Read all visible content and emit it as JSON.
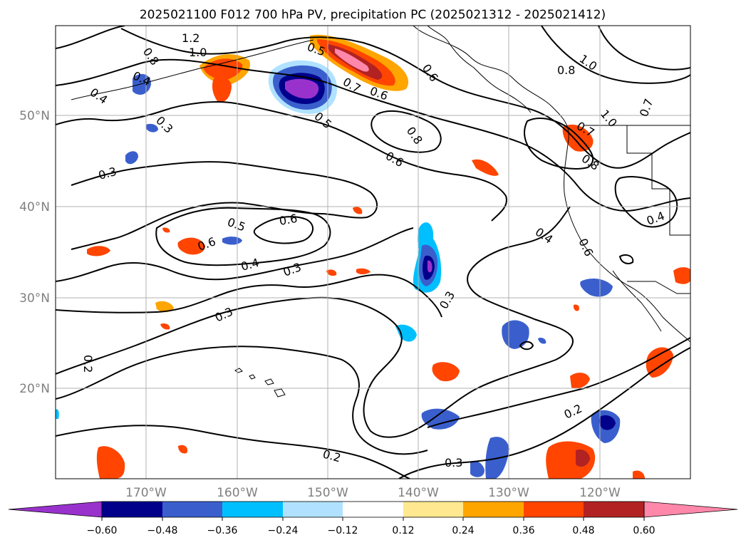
{
  "title": "2025021100 F012 700 hPa PV, precipitation PC (2025021312 - 2025021412)",
  "map": {
    "latitude_labels": [
      "50°N",
      "40°N",
      "30°N",
      "20°N"
    ],
    "longitude_labels": [
      "170°W",
      "160°W",
      "150°W",
      "140°W",
      "130°W",
      "120°W"
    ],
    "contour_labels": [
      "0.8",
      "1.2",
      "1.0",
      "0.4",
      "0.4",
      "0.3",
      "0.3",
      "0.5",
      "0.7",
      "0.6",
      "0.5",
      "0.6",
      "0.8",
      "0.6",
      "1.0",
      "0.8",
      "1.0",
      "0.7",
      "0.7",
      "0.8",
      "0.4",
      "0.5",
      "0.6",
      "0.6",
      "0.4",
      "0.3",
      "0.4",
      "0.6",
      "0.3",
      "0.3",
      "0.2",
      "0.2",
      "0.2",
      "0.3"
    ],
    "colors": {
      "ocean": "#ffffff",
      "contour": "#000000",
      "grid": "#b0b0b0"
    }
  },
  "colorbar": {
    "tick_labels": [
      "−0.60",
      "−0.48",
      "−0.36",
      "−0.24",
      "−0.12",
      "0.12",
      "0.24",
      "0.36",
      "0.48",
      "0.60"
    ],
    "colors": [
      "#9932cc",
      "#00008b",
      "#3a5fcd",
      "#00bfff",
      "#b0e2ff",
      "#ffffff",
      "#ffe88f",
      "#ffa500",
      "#ff4500",
      "#b22222",
      "#ff88aa"
    ]
  }
}
